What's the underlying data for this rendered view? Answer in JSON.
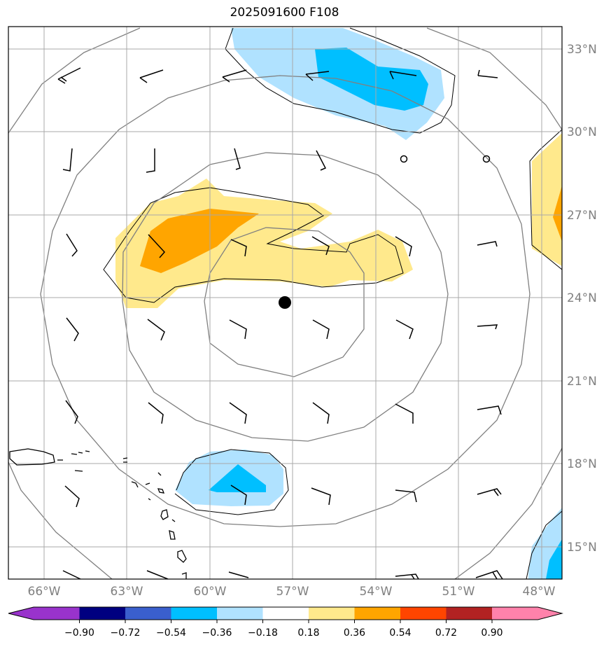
{
  "title": "2025091600 F108",
  "map": {
    "lon_range": [
      -67.0,
      -47.0
    ],
    "lat_range": [
      13.9,
      33.9
    ],
    "lon_ticks": [
      {
        "value": -66,
        "label": "66°W"
      },
      {
        "value": -63,
        "label": "63°W"
      },
      {
        "value": -60,
        "label": "60°W"
      },
      {
        "value": -57,
        "label": "57°W"
      },
      {
        "value": -54,
        "label": "54°W"
      },
      {
        "value": -51,
        "label": "51°W"
      },
      {
        "value": -48,
        "label": "48°W"
      }
    ],
    "lat_ticks": [
      {
        "value": 33,
        "label": "33°N"
      },
      {
        "value": 30,
        "label": "30°N"
      },
      {
        "value": 27,
        "label": "27°N"
      },
      {
        "value": 24,
        "label": "24°N"
      },
      {
        "value": 21,
        "label": "21°N"
      },
      {
        "value": 18,
        "label": "18°N"
      },
      {
        "value": 15,
        "label": "15°N"
      }
    ],
    "center_marker": {
      "lon": -57.3,
      "lat": 23.8
    },
    "range_rings_deg": [
      3,
      6,
      9
    ]
  },
  "colorbar": {
    "colors": [
      "#9933cc",
      "#000080",
      "#3a5fcd",
      "#00bfff",
      "#b0e2ff",
      "#ffffff",
      "#ffe98c",
      "#ffa500",
      "#ff4500",
      "#b22222",
      "#ff82ab"
    ],
    "labels": [
      "−0.90",
      "−0.72",
      "−0.54",
      "−0.36",
      "−0.18",
      "0.18",
      "0.36",
      "0.54",
      "0.72",
      "0.90"
    ]
  }
}
